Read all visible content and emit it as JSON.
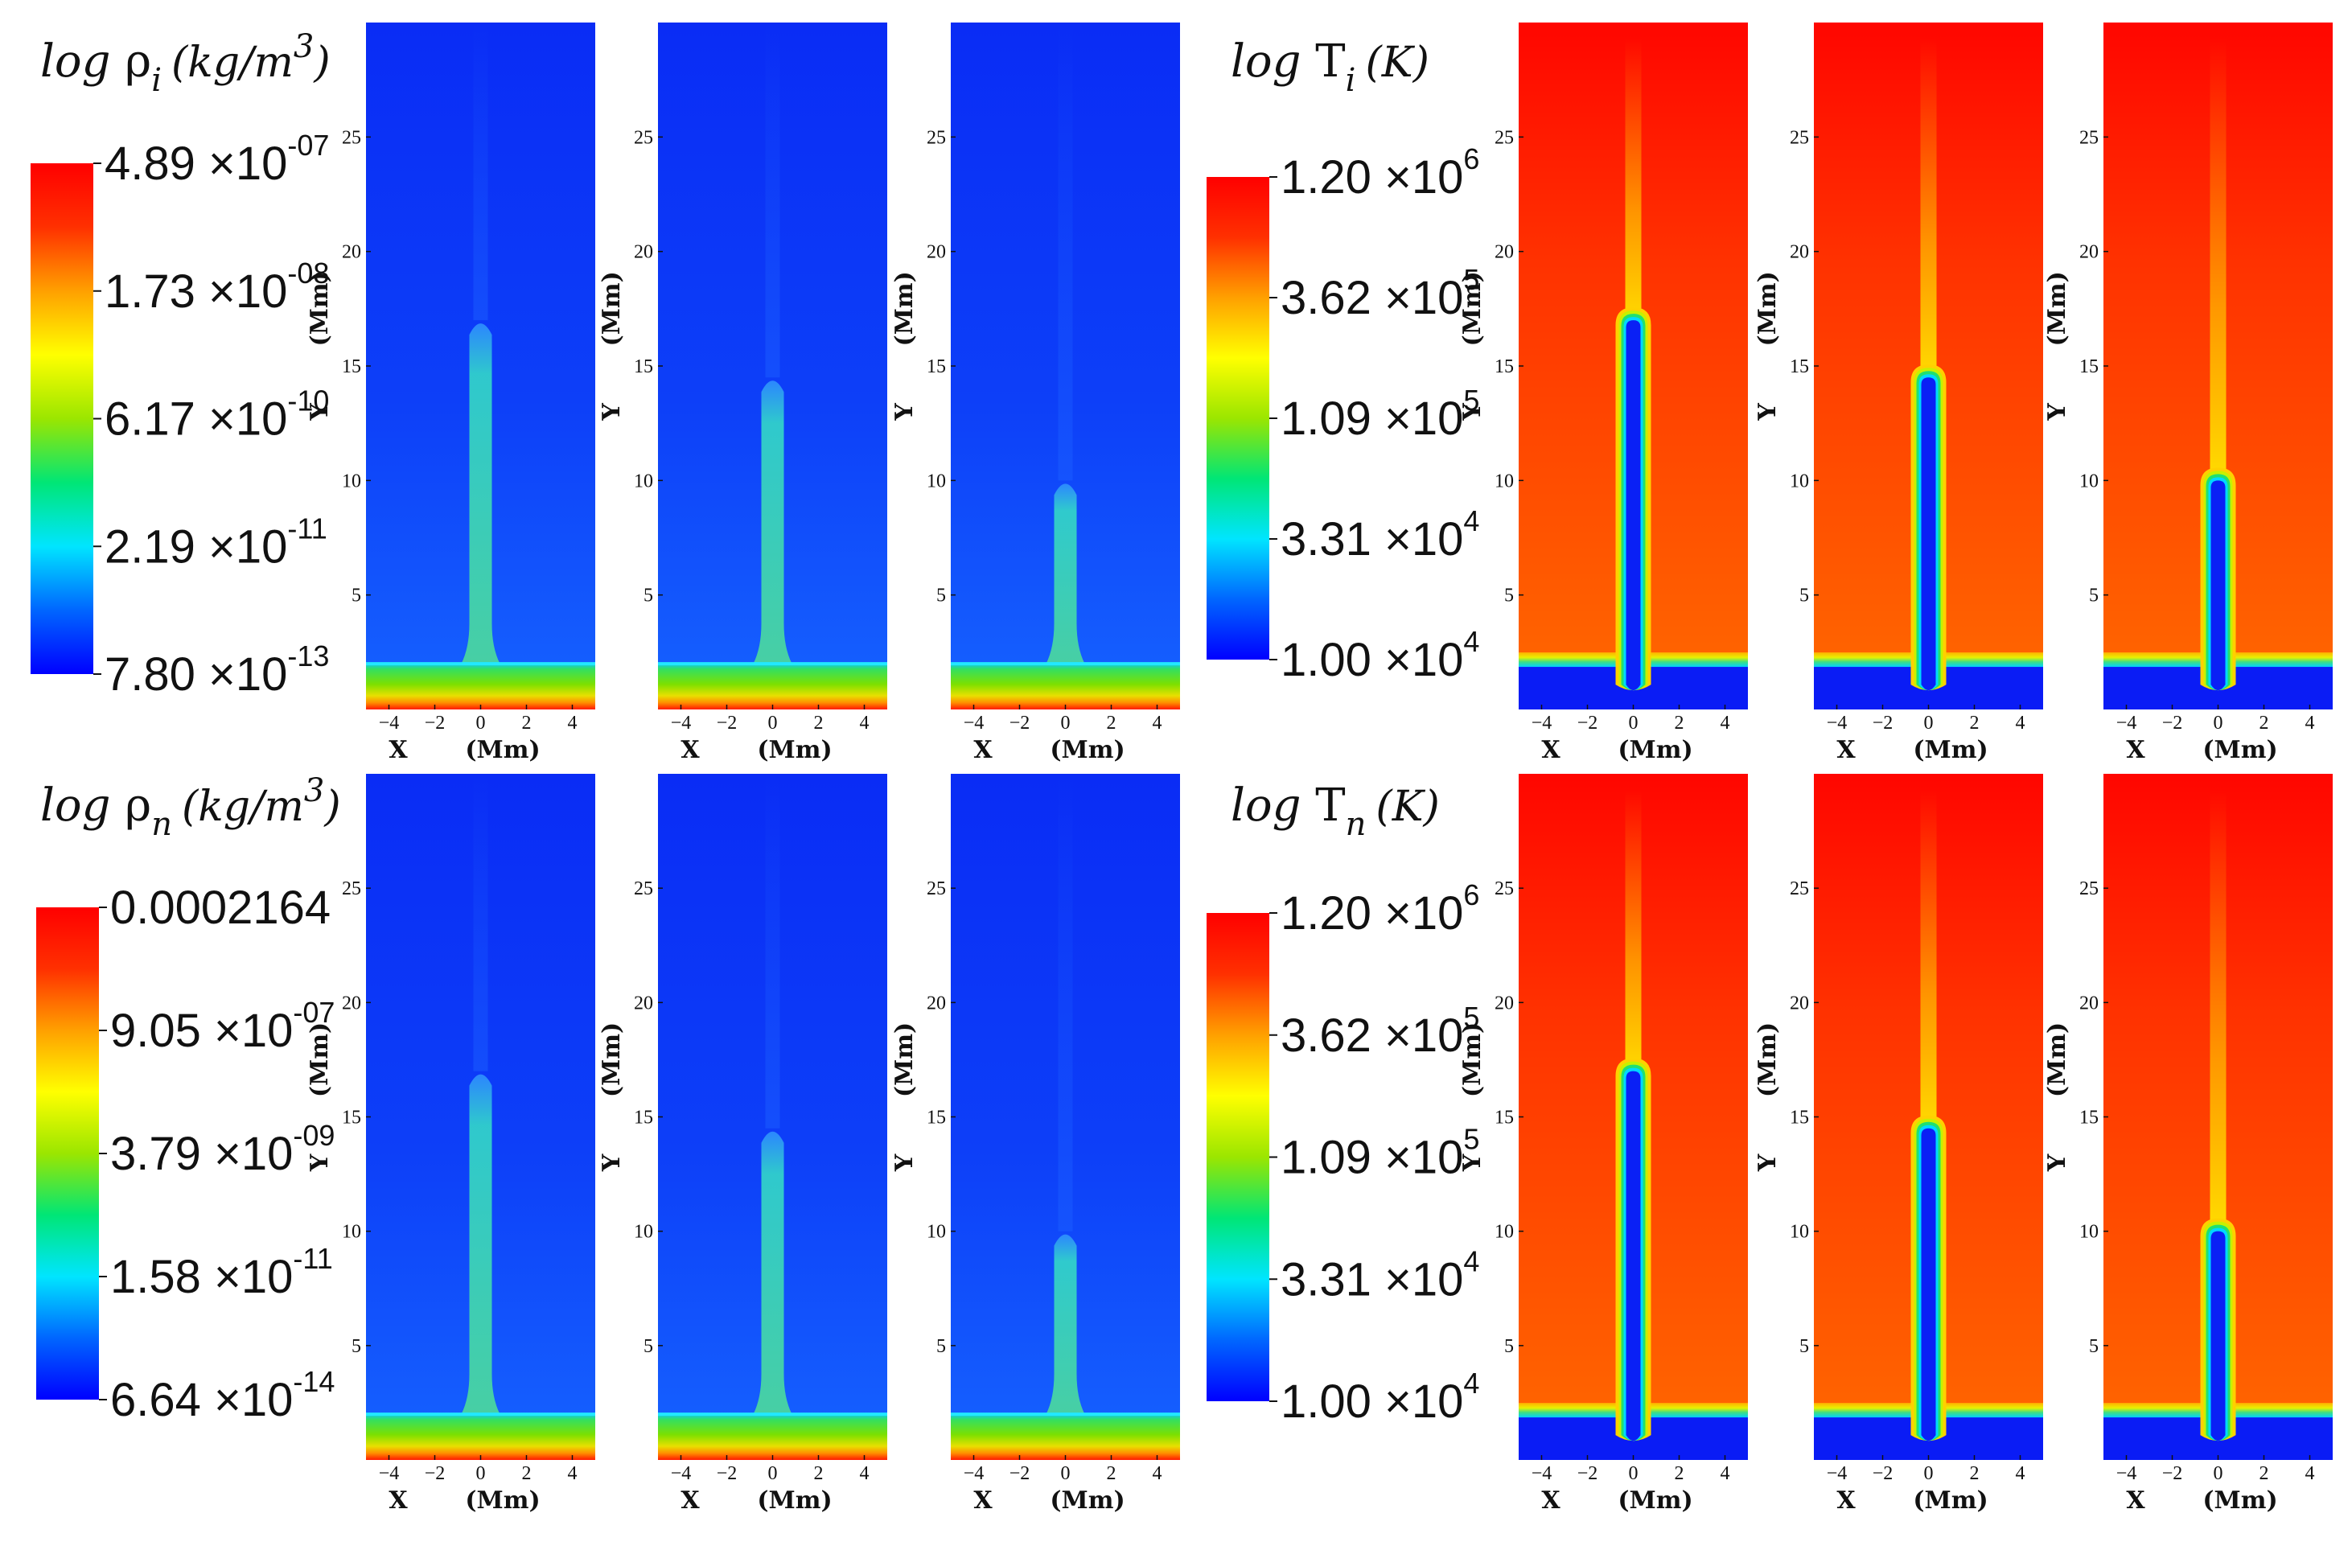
{
  "figure": {
    "colormap": [
      "#0000ff",
      "#0066ff",
      "#00e5ff",
      "#00e676",
      "#9be600",
      "#ffff00",
      "#ffa000",
      "#ff3000",
      "#ff0000"
    ],
    "xaxis": {
      "label": "X",
      "unit": "(Mm)",
      "ticks": [
        "-4",
        "-2",
        "0",
        "2",
        "4"
      ],
      "range": [
        -5,
        5
      ]
    },
    "yaxis": {
      "label": "Y",
      "unit": "(Mm)",
      "ticks": [
        "5",
        "10",
        "15",
        "20",
        "25"
      ],
      "range": [
        0,
        30
      ]
    },
    "quantities": [
      {
        "id": "rho_i",
        "prefix": "log ",
        "symbol": "ρ",
        "subscript": "i",
        "unit": "(kg/m",
        "unit_exp": "3",
        "unit_close": ")",
        "colorbar": [
          {
            "mant": "4.89",
            "exp": "-07"
          },
          {
            "mant": "1.73",
            "exp": "-08"
          },
          {
            "mant": "6.17",
            "exp": "-10"
          },
          {
            "mant": "2.19",
            "exp": "-11"
          },
          {
            "mant": "7.80",
            "exp": "-13"
          }
        ]
      },
      {
        "id": "T_i",
        "prefix": "log ",
        "symbol": "T",
        "subscript": "i",
        "unit": "(K)",
        "unit_exp": "",
        "unit_close": "",
        "colorbar": [
          {
            "mant": "1.20",
            "exp": "6"
          },
          {
            "mant": "3.62",
            "exp": "5"
          },
          {
            "mant": "1.09",
            "exp": "5"
          },
          {
            "mant": "3.31",
            "exp": "4"
          },
          {
            "mant": "1.00",
            "exp": "4"
          }
        ]
      },
      {
        "id": "rho_n",
        "prefix": "log ",
        "symbol": "ρ",
        "subscript": "n",
        "unit": "(kg/m",
        "unit_exp": "3",
        "unit_close": ")",
        "colorbar": [
          {
            "mant": "0.0002164",
            "exp": ""
          },
          {
            "mant": "9.05",
            "exp": "-07"
          },
          {
            "mant": "3.79",
            "exp": "-09"
          },
          {
            "mant": "1.58",
            "exp": "-11"
          },
          {
            "mant": "6.64",
            "exp": "-14"
          }
        ]
      },
      {
        "id": "T_n",
        "prefix": "log ",
        "symbol": "T",
        "subscript": "n",
        "unit": "(K)",
        "unit_exp": "",
        "unit_close": "",
        "colorbar": [
          {
            "mant": "1.20",
            "exp": "6"
          },
          {
            "mant": "3.62",
            "exp": "5"
          },
          {
            "mant": "1.09",
            "exp": "5"
          },
          {
            "mant": "3.31",
            "exp": "4"
          },
          {
            "mant": "1.00",
            "exp": "4"
          }
        ]
      }
    ]
  },
  "chart_data": {
    "type": "heatmap",
    "title": "",
    "xlabel": "X (Mm)",
    "ylabel": "Y (Mm)",
    "xlim": [
      -5,
      5
    ],
    "ylim": [
      0,
      30
    ],
    "panels_per_quantity": 3,
    "structure": "vertical jet (spicule) at x = 0 rising from a transition region at y ≈ 2 Mm",
    "jet_apex_heights_Mm": [
      17,
      14.5,
      10
    ],
    "transition_region_height_Mm": 2,
    "quantities": [
      "log rho_i (kg/m^3)",
      "log T_i (K)",
      "log rho_n (kg/m^3)",
      "log T_n (K)"
    ]
  }
}
